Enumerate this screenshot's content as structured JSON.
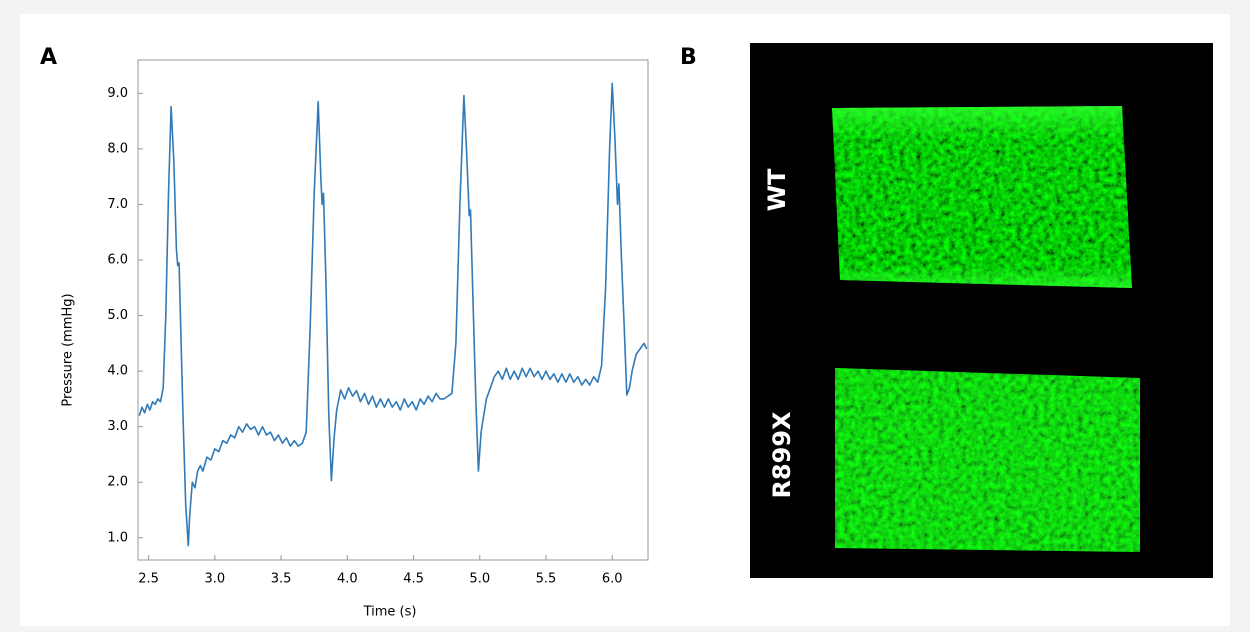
{
  "panel_labels": [
    "A",
    "B"
  ],
  "chart_data": {
    "type": "line",
    "xlabel": "Time (s)",
    "ylabel": "Pressure (mmHg)",
    "color": "#2f7ab9",
    "xlim": [
      2.42,
      6.27
    ],
    "ylim": [
      0.6,
      9.6
    ],
    "xticks": [
      2.5,
      {
        "value": 3,
        "label": "3.0"
      },
      3.5,
      {
        "value": 4,
        "label": "4.0"
      },
      4.5,
      {
        "value": 5,
        "label": "5.0"
      },
      5.5,
      {
        "value": 6,
        "label": "6.0"
      }
    ],
    "yticks": [
      {
        "value": 1,
        "label": "1.0"
      },
      {
        "value": 2,
        "label": "2.0"
      },
      {
        "value": 3,
        "label": "3.0"
      },
      {
        "value": 4,
        "label": "4.0"
      },
      {
        "value": 5,
        "label": "5.0"
      },
      {
        "value": 6,
        "label": "6.0"
      },
      {
        "value": 7,
        "label": "7.0"
      },
      {
        "value": 8,
        "label": "8.0"
      },
      {
        "value": 9,
        "label": "9.0"
      }
    ],
    "x": [
      2.43,
      2.45,
      2.47,
      2.49,
      2.51,
      2.53,
      2.55,
      2.57,
      2.59,
      2.61,
      2.63,
      2.65,
      2.67,
      2.69,
      2.71,
      2.72,
      2.73,
      2.74,
      2.76,
      2.78,
      2.8,
      2.81,
      2.83,
      2.85,
      2.87,
      2.89,
      2.91,
      2.94,
      2.97,
      3.0,
      3.03,
      3.06,
      3.09,
      3.12,
      3.15,
      3.18,
      3.21,
      3.24,
      3.27,
      3.3,
      3.33,
      3.36,
      3.39,
      3.42,
      3.45,
      3.48,
      3.51,
      3.54,
      3.57,
      3.6,
      3.63,
      3.66,
      3.69,
      3.72,
      3.75,
      3.78,
      3.8,
      3.81,
      3.82,
      3.84,
      3.86,
      3.88,
      3.9,
      3.92,
      3.95,
      3.98,
      4.01,
      4.04,
      4.07,
      4.1,
      4.13,
      4.16,
      4.19,
      4.22,
      4.25,
      4.28,
      4.31,
      4.34,
      4.37,
      4.4,
      4.43,
      4.46,
      4.49,
      4.52,
      4.55,
      4.58,
      4.61,
      4.64,
      4.67,
      4.7,
      4.73,
      4.76,
      4.79,
      4.82,
      4.85,
      4.88,
      4.9,
      4.92,
      4.93,
      4.95,
      4.97,
      4.99,
      5.01,
      5.03,
      5.05,
      5.08,
      5.11,
      5.14,
      5.17,
      5.2,
      5.23,
      5.26,
      5.29,
      5.32,
      5.35,
      5.38,
      5.41,
      5.44,
      5.47,
      5.5,
      5.53,
      5.56,
      5.59,
      5.62,
      5.65,
      5.68,
      5.71,
      5.74,
      5.77,
      5.8,
      5.83,
      5.86,
      5.89,
      5.92,
      5.95,
      5.98,
      6.0,
      6.02,
      6.04,
      6.05,
      6.07,
      6.09,
      6.11,
      6.13,
      6.15,
      6.18,
      6.21,
      6.24,
      6.26
    ],
    "values": [
      3.2,
      3.35,
      3.25,
      3.4,
      3.3,
      3.45,
      3.4,
      3.5,
      3.45,
      3.7,
      5.0,
      7.2,
      8.76,
      7.8,
      6.2,
      5.9,
      5.95,
      5.0,
      3.2,
      1.6,
      0.86,
      1.4,
      2.0,
      1.9,
      2.2,
      2.3,
      2.2,
      2.45,
      2.4,
      2.6,
      2.55,
      2.75,
      2.7,
      2.85,
      2.8,
      3.0,
      2.9,
      3.05,
      2.95,
      3.0,
      2.85,
      3.0,
      2.85,
      2.9,
      2.75,
      2.85,
      2.7,
      2.8,
      2.65,
      2.75,
      2.65,
      2.7,
      2.9,
      4.8,
      7.2,
      8.85,
      7.5,
      7.0,
      7.2,
      5.5,
      3.2,
      2.03,
      2.8,
      3.3,
      3.66,
      3.5,
      3.7,
      3.55,
      3.65,
      3.45,
      3.6,
      3.4,
      3.55,
      3.35,
      3.5,
      3.35,
      3.5,
      3.35,
      3.45,
      3.3,
      3.5,
      3.35,
      3.45,
      3.3,
      3.5,
      3.4,
      3.55,
      3.45,
      3.6,
      3.5,
      3.5,
      3.55,
      3.6,
      4.5,
      7.0,
      8.96,
      8.0,
      6.8,
      6.9,
      5.2,
      3.5,
      2.2,
      2.9,
      3.2,
      3.5,
      3.7,
      3.9,
      4.0,
      3.85,
      4.05,
      3.85,
      4.0,
      3.85,
      4.05,
      3.9,
      4.05,
      3.9,
      4.0,
      3.85,
      4.0,
      3.85,
      3.95,
      3.8,
      3.95,
      3.8,
      3.95,
      3.8,
      3.9,
      3.75,
      3.85,
      3.75,
      3.9,
      3.8,
      4.1,
      5.5,
      8.0,
      9.18,
      8.2,
      7.0,
      7.37,
      6.0,
      4.8,
      3.57,
      3.7,
      4.0,
      4.3,
      4.4,
      4.5,
      4.4
    ]
  },
  "panel_b": {
    "labels": [
      "WT",
      "R899X"
    ]
  }
}
